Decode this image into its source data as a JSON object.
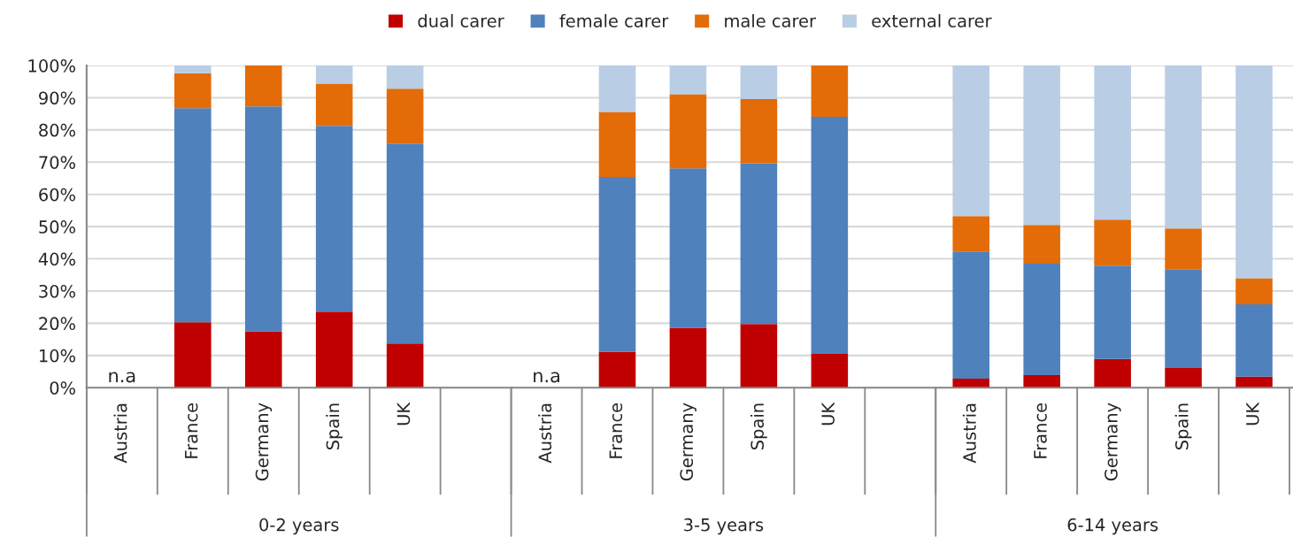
{
  "chart_data": {
    "type": "bar",
    "stacked": true,
    "categories": [
      "Austria",
      "France",
      "Germany",
      "Spain",
      "UK",
      null,
      "Austria",
      "France",
      "Germany",
      "Spain",
      "UK",
      null,
      "Austria",
      "France",
      "Germany",
      "Spain",
      "UK"
    ],
    "series": [
      {
        "name": "dual carer",
        "color": "#c00000",
        "values": [
          null,
          20.3,
          17.5,
          23.6,
          13.7,
          null,
          null,
          11.1,
          18.6,
          19.8,
          10.5,
          null,
          2.8,
          3.9,
          8.9,
          6.1,
          3.4
        ],
        "value_labels": [
          "n.a",
          null,
          null,
          null,
          null,
          null,
          "n.a",
          null,
          null,
          null,
          null,
          null,
          null,
          null,
          null,
          null,
          null
        ]
      },
      {
        "name": "female carer",
        "color": "#4f81bd",
        "values": [
          null,
          66.5,
          69.8,
          57.7,
          62.1,
          null,
          null,
          54.3,
          49.5,
          49.9,
          73.6,
          null,
          39.5,
          34.6,
          29.0,
          30.7,
          22.5
        ]
      },
      {
        "name": "male carer",
        "color": "#e36c09",
        "values": [
          null,
          10.8,
          12.7,
          13.1,
          17.0,
          null,
          null,
          20.2,
          23.0,
          19.9,
          15.9,
          null,
          11.0,
          12.0,
          14.3,
          12.6,
          8.1
        ]
      },
      {
        "name": "external carer",
        "color": "#b9cde5",
        "values": [
          null,
          2.4,
          0,
          5.6,
          7.2,
          null,
          null,
          14.4,
          8.9,
          10.4,
          0,
          null,
          46.7,
          49.5,
          47.8,
          50.6,
          66.0
        ]
      }
    ],
    "annotations": [
      "0-2 years",
      "3-5 years",
      "6-14 years"
    ],
    "ylim": [
      0,
      100
    ],
    "yticks": [
      {
        "value": 0,
        "label": "0%"
      },
      {
        "value": 10,
        "label": "10%"
      },
      {
        "value": 20,
        "label": "20%"
      },
      {
        "value": 30,
        "label": "30%"
      },
      {
        "value": 40,
        "label": "40%"
      },
      {
        "value": 50,
        "label": "50%"
      },
      {
        "value": 60,
        "label": "60%"
      },
      {
        "value": 70,
        "label": "70%"
      },
      {
        "value": 80,
        "label": "80%"
      },
      {
        "value": 90,
        "label": "90%"
      },
      {
        "value": 100,
        "label": "100%"
      }
    ],
    "grid": "y",
    "legend": "top"
  }
}
